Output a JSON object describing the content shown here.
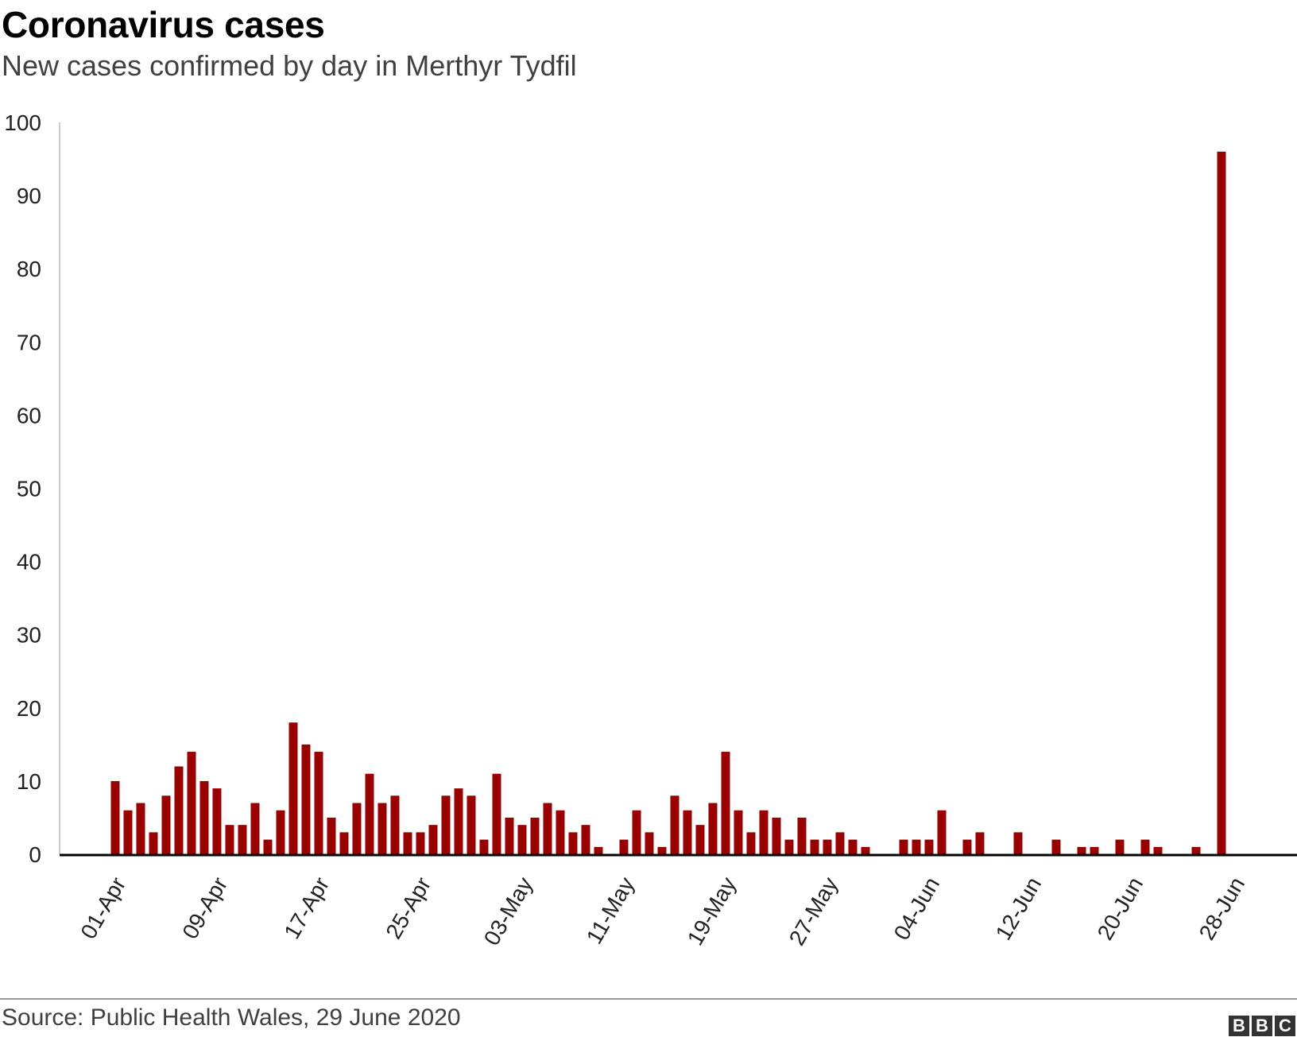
{
  "header": {
    "title": "Coronavirus cases",
    "subtitle": "New cases confirmed by day in Merthyr Tydfil"
  },
  "footer": {
    "source": "Source: Public Health Wales, 29 June 2020",
    "logo_letters": [
      "B",
      "B",
      "C"
    ]
  },
  "colors": {
    "bar": "#990000",
    "axis": "#000000",
    "text": "#222222"
  },
  "chart_data": {
    "type": "bar",
    "title": "Coronavirus cases",
    "subtitle": "New cases confirmed by day in Merthyr Tydfil",
    "xlabel": "",
    "ylabel": "",
    "ylim": [
      0,
      100
    ],
    "yticks": [
      0,
      10,
      20,
      30,
      40,
      50,
      60,
      70,
      80,
      90,
      100
    ],
    "grid": false,
    "legend": "none",
    "x_tick_labels": [
      "01-Apr",
      "09-Apr",
      "17-Apr",
      "25-Apr",
      "03-May",
      "11-May",
      "19-May",
      "27-May",
      "04-Jun",
      "12-Jun",
      "20-Jun",
      "28-Jun"
    ],
    "categories": [
      "01-Apr",
      "02-Apr",
      "03-Apr",
      "04-Apr",
      "05-Apr",
      "06-Apr",
      "07-Apr",
      "08-Apr",
      "09-Apr",
      "10-Apr",
      "11-Apr",
      "12-Apr",
      "13-Apr",
      "14-Apr",
      "15-Apr",
      "16-Apr",
      "17-Apr",
      "18-Apr",
      "19-Apr",
      "20-Apr",
      "21-Apr",
      "22-Apr",
      "23-Apr",
      "24-Apr",
      "25-Apr",
      "26-Apr",
      "27-Apr",
      "28-Apr",
      "29-Apr",
      "30-Apr",
      "01-May",
      "02-May",
      "03-May",
      "04-May",
      "05-May",
      "06-May",
      "07-May",
      "08-May",
      "09-May",
      "10-May",
      "11-May",
      "12-May",
      "13-May",
      "14-May",
      "15-May",
      "16-May",
      "17-May",
      "18-May",
      "19-May",
      "20-May",
      "21-May",
      "22-May",
      "23-May",
      "24-May",
      "25-May",
      "26-May",
      "27-May",
      "28-May",
      "29-May",
      "30-May",
      "31-May",
      "01-Jun",
      "02-Jun",
      "03-Jun",
      "04-Jun",
      "05-Jun",
      "06-Jun",
      "07-Jun",
      "08-Jun",
      "09-Jun",
      "10-Jun",
      "11-Jun",
      "12-Jun",
      "13-Jun",
      "14-Jun",
      "15-Jun",
      "16-Jun",
      "17-Jun",
      "18-Jun",
      "19-Jun",
      "20-Jun",
      "21-Jun",
      "22-Jun",
      "23-Jun",
      "24-Jun",
      "25-Jun",
      "26-Jun",
      "27-Jun",
      "28-Jun"
    ],
    "values": [
      10,
      6,
      7,
      3,
      8,
      12,
      14,
      10,
      9,
      4,
      4,
      7,
      2,
      6,
      18,
      15,
      14,
      5,
      3,
      7,
      11,
      7,
      8,
      3,
      3,
      4,
      8,
      9,
      8,
      2,
      11,
      5,
      4,
      5,
      7,
      6,
      3,
      4,
      1,
      0,
      2,
      6,
      3,
      1,
      8,
      6,
      4,
      7,
      14,
      6,
      3,
      6,
      5,
      2,
      5,
      2,
      2,
      3,
      2,
      1,
      0,
      0,
      2,
      2,
      2,
      6,
      0,
      2,
      3,
      0,
      0,
      3,
      0,
      0,
      2,
      0,
      1,
      1,
      0,
      2,
      0,
      2,
      1,
      0,
      0,
      1,
      0,
      96,
      0
    ]
  }
}
